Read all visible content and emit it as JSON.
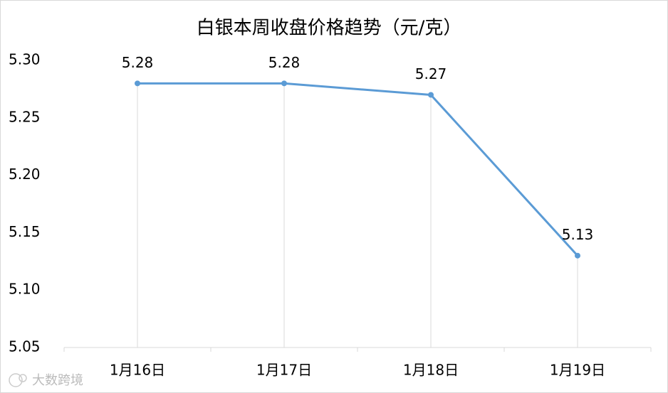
{
  "chart_data": {
    "type": "line",
    "title": "白银本周收盘价格趋势（元/克）",
    "categories": [
      "1月16日",
      "1月17日",
      "1月18日",
      "1月19日"
    ],
    "values": [
      5.28,
      5.28,
      5.27,
      5.13
    ],
    "color": "#5b9bd5",
    "ylim": [
      5.05,
      5.3
    ],
    "yticks": [
      {
        "value": 5.05,
        "label": "5.05"
      },
      {
        "value": 5.1,
        "label": "5.10"
      },
      5.15,
      {
        "value": 5.2,
        "label": "5.20"
      },
      5.25,
      {
        "value": 5.3,
        "label": "5.30"
      }
    ],
    "drop_lines": true,
    "watermark": "大数跨境"
  }
}
